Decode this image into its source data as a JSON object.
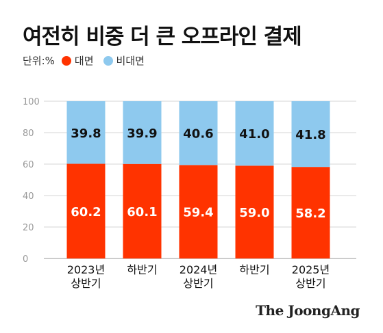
{
  "title": "여전히 비중 더 큰 오프라인 결제",
  "legend": {
    "unit": "단위:%",
    "items": [
      {
        "label": "대면",
        "color": "#ff3300"
      },
      {
        "label": "비대면",
        "color": "#8ec9ee"
      }
    ]
  },
  "brand": "The JoongAng",
  "chart_data": {
    "type": "bar",
    "stacked": true,
    "categories": [
      [
        "2023년",
        "상반기"
      ],
      [
        "하반기"
      ],
      [
        "2024년",
        "상반기"
      ],
      [
        "하반기"
      ],
      [
        "2025년",
        "상반기"
      ]
    ],
    "series": [
      {
        "name": "대면",
        "color": "#ff3300",
        "label_color": "#ffffff",
        "values": [
          60.2,
          60.1,
          59.4,
          59.0,
          58.2
        ],
        "labels": [
          "60.2",
          "60.1",
          "59.4",
          "59.0",
          "58.2"
        ]
      },
      {
        "name": "비대면",
        "color": "#8ec9ee",
        "label_color": "#111111",
        "values": [
          39.8,
          39.9,
          40.6,
          41.0,
          41.8
        ],
        "labels": [
          "39.8",
          "39.9",
          "40.6",
          "41.0",
          "41.8"
        ]
      }
    ],
    "yticks": [
      "0",
      "20",
      "40",
      "60",
      "80",
      "100"
    ],
    "ylim": [
      0,
      100
    ],
    "grid": true,
    "legend_position": "top-left"
  }
}
